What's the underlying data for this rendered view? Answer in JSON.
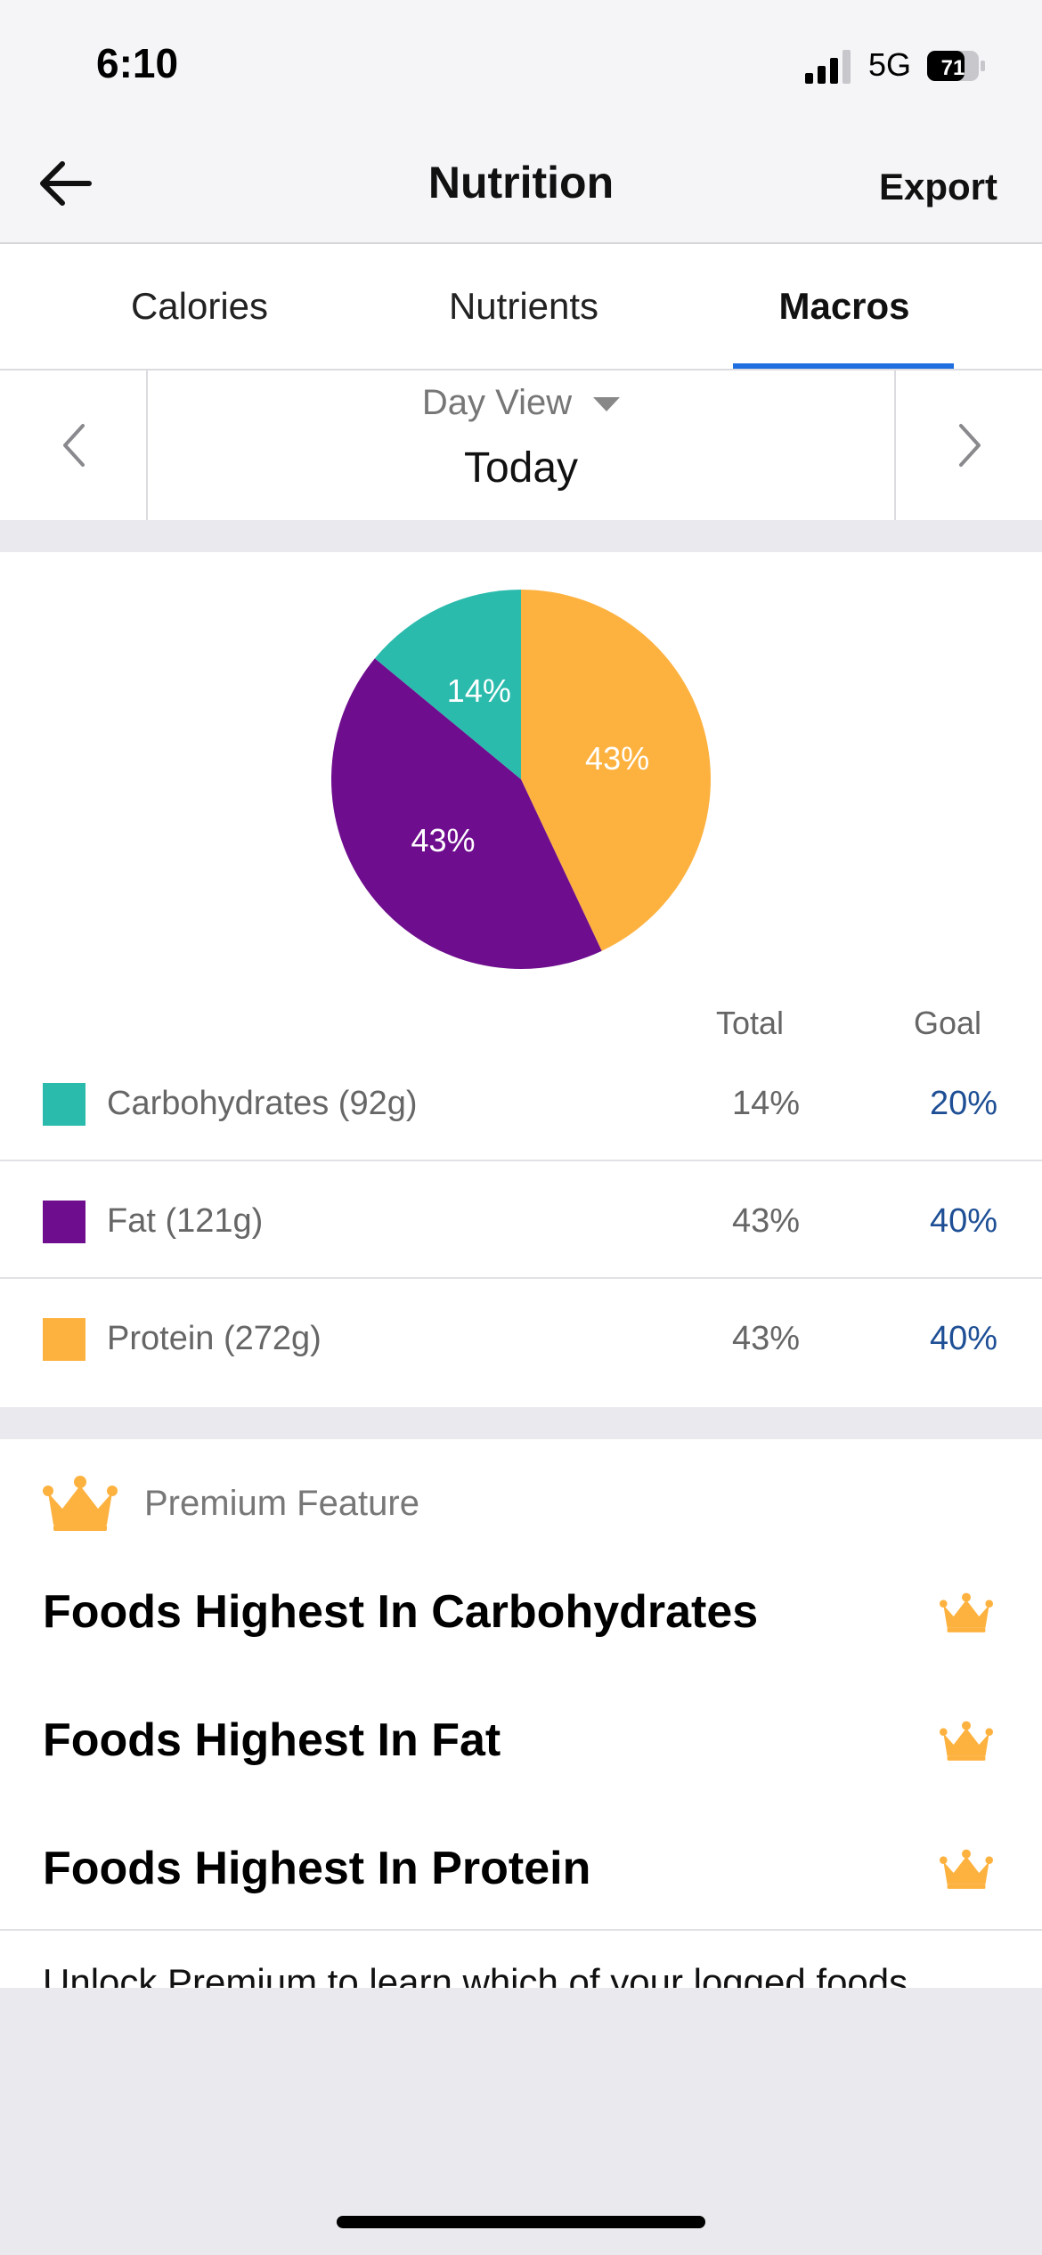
{
  "status": {
    "time": "6:10",
    "network": "5G",
    "battery": "71"
  },
  "nav": {
    "title": "Nutrition",
    "export_label": "Export"
  },
  "tabs": [
    {
      "label": "Calories",
      "active": false
    },
    {
      "label": "Nutrients",
      "active": false
    },
    {
      "label": "Macros",
      "active": true
    }
  ],
  "date_selector": {
    "view_mode": "Day View",
    "day": "Today"
  },
  "chart_data": {
    "type": "pie",
    "slices": [
      {
        "name": "Carbohydrates",
        "value": 14,
        "label": "14%",
        "color": "#2bbbad"
      },
      {
        "name": "Fat",
        "value": 43,
        "label": "43%",
        "color": "#6e0e8e"
      },
      {
        "name": "Protein",
        "value": 43,
        "label": "43%",
        "color": "#fdb240"
      }
    ]
  },
  "macros": {
    "total_header": "Total",
    "goal_header": "Goal",
    "rows": [
      {
        "label": "Carbohydrates (92g)",
        "total": "14%",
        "goal": "20%",
        "color": "#2bbbad"
      },
      {
        "label": "Fat (121g)",
        "total": "43%",
        "goal": "40%",
        "color": "#6e0e8e"
      },
      {
        "label": "Protein (272g)",
        "total": "43%",
        "goal": "40%",
        "color": "#fdb240"
      }
    ]
  },
  "premium": {
    "label": "Premium Feature",
    "features": [
      {
        "label": "Foods Highest In Carbohydrates"
      },
      {
        "label": "Foods Highest In Fat"
      },
      {
        "label": "Foods Highest In Protein"
      }
    ],
    "unlock_text": "Unlock Premium to learn which of your logged foods"
  },
  "colors": {
    "accent": "#1f6fe0",
    "goal_text": "#1e4f95",
    "crown": "#fdb240"
  }
}
